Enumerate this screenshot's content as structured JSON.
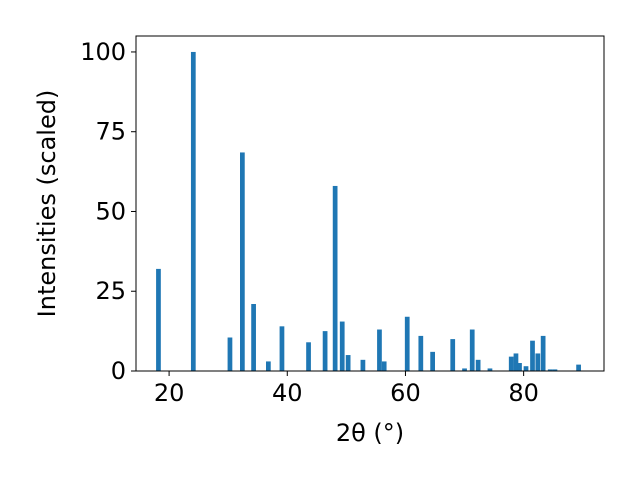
{
  "chart_data": {
    "type": "bar",
    "title": "",
    "xlabel": "2θ (°)",
    "ylabel": "Intensities (scaled)",
    "xlim": [
      14.4,
      93.6
    ],
    "ylim": [
      0,
      105
    ],
    "x_ticks": [
      20,
      40,
      60,
      80
    ],
    "y_ticks": [
      0,
      25,
      50,
      75,
      100
    ],
    "grid": false,
    "bar_color": "#1f77b4",
    "bar_width": 0.8,
    "series": [
      {
        "x": [
          18.2,
          24.1,
          30.3,
          32.4,
          34.3,
          36.8,
          39.1,
          43.6,
          46.4,
          48.1,
          49.3,
          50.3,
          52.8,
          55.6,
          56.4,
          60.3,
          62.6,
          64.6,
          68.0,
          70.0,
          71.3,
          72.3,
          74.3,
          77.9,
          78.7,
          79.3,
          80.4,
          81.5,
          82.4,
          83.3,
          84.5,
          85.3,
          89.3
        ],
        "y": [
          32,
          100,
          10.5,
          68.5,
          21,
          3,
          14,
          9,
          12.5,
          58,
          15.5,
          5,
          3.5,
          13,
          3,
          17,
          11,
          6,
          10,
          0.8,
          13,
          3.5,
          0.8,
          4.5,
          5.5,
          2.5,
          1.5,
          9.5,
          5.5,
          11,
          0.5,
          0.5,
          2
        ]
      }
    ]
  }
}
